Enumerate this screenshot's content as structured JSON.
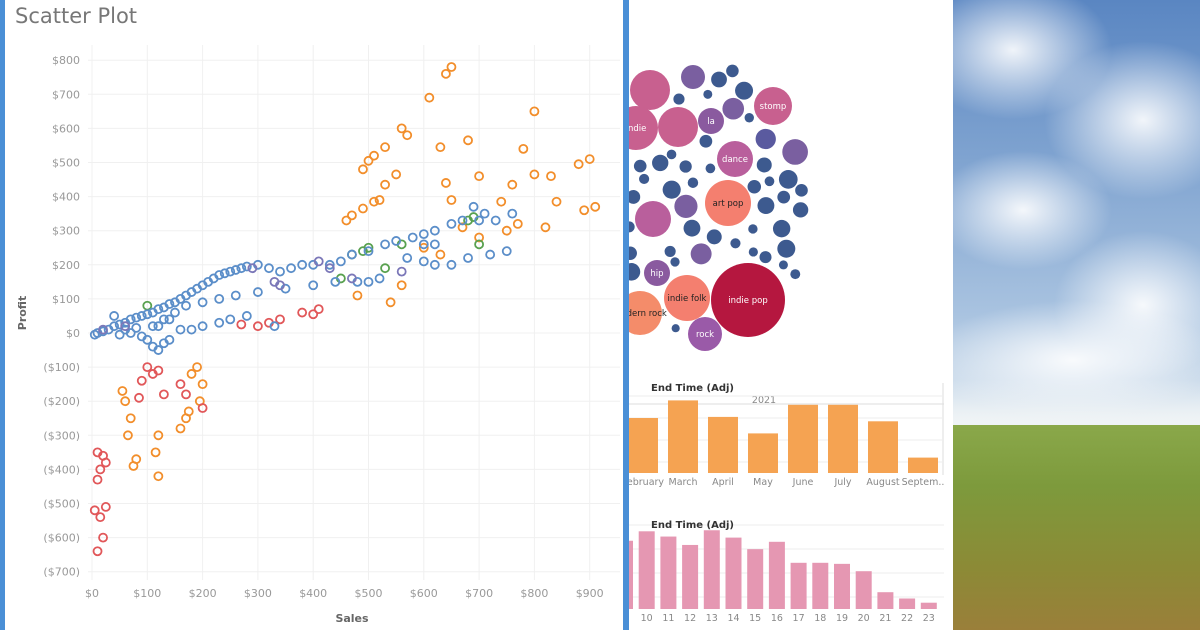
{
  "chart_data": [
    {
      "type": "scatter",
      "title": "Scatter Plot",
      "xlabel": "Sales",
      "ylabel": "Profit",
      "xlim": [
        0,
        950
      ],
      "ylim": [
        -730,
        830
      ],
      "grid": true,
      "x_ticks": [
        "$0",
        "$100",
        "$200",
        "$300",
        "$400",
        "$500",
        "$600",
        "$700",
        "$800",
        "$900"
      ],
      "y_ticks": [
        "$800",
        "$700",
        "$600",
        "$500",
        "$400",
        "$300",
        "$200",
        "$100",
        "$0",
        "($100)",
        "($200)",
        "($300)",
        "($400)",
        "($500)",
        "($600)",
        "($700)"
      ],
      "marker": "hollow-circle",
      "series": [
        {
          "color": "#f28e2b",
          "points": [
            [
              650,
              780
            ],
            [
              640,
              760
            ],
            [
              610,
              690
            ],
            [
              800,
              650
            ],
            [
              560,
              600
            ],
            [
              570,
              580
            ],
            [
              680,
              565
            ],
            [
              630,
              545
            ],
            [
              490,
              480
            ],
            [
              500,
              505
            ],
            [
              510,
              520
            ],
            [
              530,
              545
            ],
            [
              530,
              435
            ],
            [
              550,
              465
            ],
            [
              640,
              440
            ],
            [
              700,
              460
            ],
            [
              780,
              540
            ],
            [
              900,
              510
            ],
            [
              880,
              495
            ],
            [
              800,
              465
            ],
            [
              830,
              460
            ],
            [
              760,
              435
            ],
            [
              650,
              390
            ],
            [
              740,
              385
            ],
            [
              840,
              385
            ],
            [
              460,
              330
            ],
            [
              470,
              345
            ],
            [
              490,
              365
            ],
            [
              510,
              385
            ],
            [
              520,
              390
            ],
            [
              750,
              300
            ],
            [
              770,
              320
            ],
            [
              670,
              310
            ],
            [
              820,
              310
            ],
            [
              890,
              360
            ],
            [
              910,
              370
            ],
            [
              540,
              90
            ],
            [
              480,
              110
            ],
            [
              560,
              140
            ],
            [
              700,
              280
            ],
            [
              600,
              250
            ],
            [
              630,
              230
            ],
            [
              60,
              -200
            ],
            [
              70,
              -250
            ],
            [
              65,
              -300
            ],
            [
              80,
              -370
            ],
            [
              75,
              -390
            ],
            [
              120,
              -300
            ],
            [
              115,
              -350
            ],
            [
              120,
              -420
            ],
            [
              160,
              -280
            ],
            [
              170,
              -250
            ],
            [
              175,
              -230
            ],
            [
              190,
              -100
            ],
            [
              200,
              -150
            ],
            [
              195,
              -200
            ],
            [
              55,
              -170
            ],
            [
              180,
              -120
            ]
          ]
        },
        {
          "color": "#e15759",
          "points": [
            [
              10,
              -350
            ],
            [
              20,
              -360
            ],
            [
              15,
              -400
            ],
            [
              25,
              -380
            ],
            [
              10,
              -430
            ],
            [
              5,
              -520
            ],
            [
              15,
              -540
            ],
            [
              25,
              -510
            ],
            [
              20,
              -600
            ],
            [
              10,
              -640
            ],
            [
              100,
              -100
            ],
            [
              110,
              -120
            ],
            [
              90,
              -140
            ],
            [
              130,
              -180
            ],
            [
              160,
              -150
            ],
            [
              170,
              -180
            ],
            [
              200,
              -220
            ],
            [
              120,
              -110
            ],
            [
              300,
              20
            ],
            [
              320,
              30
            ],
            [
              340,
              40
            ],
            [
              380,
              60
            ],
            [
              400,
              55
            ],
            [
              410,
              70
            ],
            [
              270,
              25
            ],
            [
              85,
              -190
            ]
          ]
        },
        {
          "color": "#59a14f",
          "points": [
            [
              470,
              230
            ],
            [
              490,
              240
            ],
            [
              500,
              250
            ],
            [
              560,
              260
            ],
            [
              680,
              330
            ],
            [
              690,
              340
            ],
            [
              450,
              160
            ],
            [
              530,
              190
            ],
            [
              700,
              260
            ],
            [
              100,
              80
            ]
          ]
        },
        {
          "color": "#5b8ec9",
          "points": [
            [
              10,
              0
            ],
            [
              30,
              10
            ],
            [
              40,
              20
            ],
            [
              50,
              25
            ],
            [
              60,
              30
            ],
            [
              70,
              40
            ],
            [
              80,
              45
            ],
            [
              90,
              50
            ],
            [
              100,
              55
            ],
            [
              110,
              60
            ],
            [
              120,
              70
            ],
            [
              130,
              75
            ],
            [
              140,
              85
            ],
            [
              150,
              90
            ],
            [
              160,
              100
            ],
            [
              170,
              110
            ],
            [
              180,
              120
            ],
            [
              190,
              130
            ],
            [
              200,
              140
            ],
            [
              210,
              150
            ],
            [
              220,
              160
            ],
            [
              230,
              170
            ],
            [
              240,
              175
            ],
            [
              250,
              180
            ],
            [
              260,
              185
            ],
            [
              270,
              190
            ],
            [
              280,
              195
            ],
            [
              300,
              200
            ],
            [
              320,
              190
            ],
            [
              340,
              180
            ],
            [
              360,
              190
            ],
            [
              380,
              200
            ],
            [
              400,
              200
            ],
            [
              430,
              200
            ],
            [
              450,
              210
            ],
            [
              470,
              230
            ],
            [
              500,
              240
            ],
            [
              530,
              260
            ],
            [
              550,
              270
            ],
            [
              580,
              280
            ],
            [
              600,
              290
            ],
            [
              620,
              300
            ],
            [
              650,
              320
            ],
            [
              670,
              330
            ],
            [
              700,
              330
            ],
            [
              730,
              330
            ],
            [
              690,
              370
            ],
            [
              600,
              260
            ],
            [
              620,
              260
            ],
            [
              570,
              220
            ],
            [
              520,
              160
            ],
            [
              500,
              150
            ],
            [
              480,
              150
            ],
            [
              440,
              150
            ],
            [
              400,
              140
            ],
            [
              350,
              130
            ],
            [
              300,
              120
            ],
            [
              260,
              110
            ],
            [
              230,
              100
            ],
            [
              200,
              90
            ],
            [
              170,
              80
            ],
            [
              150,
              60
            ],
            [
              130,
              40
            ],
            [
              110,
              20
            ],
            [
              100,
              -20
            ],
            [
              110,
              -40
            ],
            [
              120,
              -50
            ],
            [
              130,
              -30
            ],
            [
              140,
              -20
            ],
            [
              160,
              10
            ],
            [
              180,
              10
            ],
            [
              200,
              20
            ],
            [
              230,
              30
            ],
            [
              250,
              40
            ],
            [
              280,
              50
            ],
            [
              330,
              20
            ],
            [
              20,
              5
            ],
            [
              5,
              -5
            ],
            [
              60,
              10
            ],
            [
              80,
              15
            ],
            [
              90,
              -10
            ],
            [
              50,
              -5
            ],
            [
              70,
              0
            ],
            [
              120,
              20
            ],
            [
              140,
              40
            ],
            [
              40,
              50
            ],
            [
              680,
              220
            ],
            [
              650,
              200
            ],
            [
              620,
              200
            ],
            [
              600,
              210
            ],
            [
              720,
              230
            ],
            [
              750,
              240
            ],
            [
              760,
              350
            ],
            [
              710,
              350
            ]
          ]
        },
        {
          "color": "#7b77b8",
          "points": [
            [
              290,
              190
            ],
            [
              330,
              150
            ],
            [
              340,
              140
            ],
            [
              410,
              210
            ],
            [
              430,
              190
            ],
            [
              470,
              160
            ],
            [
              560,
              180
            ],
            [
              20,
              10
            ],
            [
              60,
              20
            ]
          ]
        }
      ]
    },
    {
      "type": "bubble",
      "bubbles": [
        {
          "label": "",
          "value": 20,
          "color": "#c8608f"
        },
        {
          "label": "indie",
          "value": 22,
          "color": "#c8608f"
        },
        {
          "label": "",
          "value": 20,
          "color": "#c8608f"
        },
        {
          "label": "la",
          "value": 13,
          "color": "#8a5a9f"
        },
        {
          "label": "stomp",
          "value": 19,
          "color": "#c8608f"
        },
        {
          "label": "dance",
          "value": 18,
          "color": "#b95f9c"
        },
        {
          "label": "art pop",
          "value": 23,
          "color": "#f47f6f"
        },
        {
          "label": "",
          "value": 18,
          "color": "#b95f9c"
        },
        {
          "label": "hip",
          "value": 13,
          "color": "#8a5a9f"
        },
        {
          "label": "indie folk",
          "value": 23,
          "color": "#f47f6f"
        },
        {
          "label": "indie pop",
          "value": 37,
          "color": "#b5173f"
        },
        {
          "label": "modern rock",
          "value": 22,
          "color": "#f48c6a"
        },
        {
          "label": "rock",
          "value": 17,
          "color": "#9a5aa8"
        },
        {
          "label": "",
          "value": 12,
          "color": "#7a5fa0"
        }
      ],
      "small_bubble_colors": [
        "#3d5a8f",
        "#5a5a9f",
        "#7a5fa0"
      ]
    },
    {
      "type": "bar",
      "title": "End Time (Adj)",
      "header": "2021",
      "color": "#f5a352",
      "categories": [
        "February",
        "March",
        "April",
        "May",
        "June",
        "July",
        "August",
        "Septem.."
      ],
      "values": [
        50,
        66,
        51,
        36,
        62,
        62,
        47,
        14
      ],
      "ylim": [
        0,
        70
      ]
    },
    {
      "type": "bar",
      "title": "End Time (Adj)",
      "color": "#e597b2",
      "categories": [
        "",
        "10",
        "11",
        "12",
        "13",
        "14",
        "15",
        "16",
        "17",
        "18",
        "19",
        "20",
        "21",
        "22",
        "23"
      ],
      "values": [
        65,
        74,
        69,
        61,
        75,
        68,
        57,
        64,
        44,
        44,
        43,
        36,
        16,
        10,
        6
      ],
      "ylim": [
        0,
        80
      ]
    }
  ]
}
